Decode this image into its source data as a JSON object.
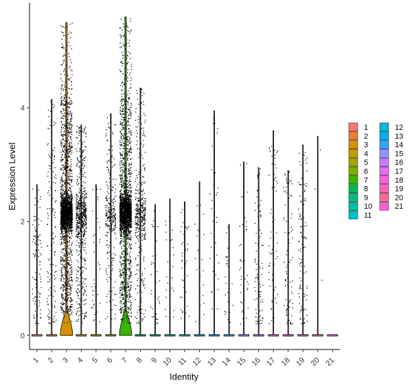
{
  "chart_data": {
    "type": "violin",
    "xlabel": "Identity",
    "ylabel": "Expression Level",
    "ylim": [
      -0.25,
      5.85
    ],
    "yticks": [
      0,
      2,
      4
    ],
    "categories": [
      "1",
      "2",
      "3",
      "4",
      "5",
      "6",
      "7",
      "8",
      "9",
      "10",
      "11",
      "12",
      "13",
      "14",
      "15",
      "16",
      "17",
      "18",
      "19",
      "20",
      "21"
    ],
    "violins": [
      {
        "cluster": "1",
        "max": 2.65,
        "points": 110,
        "color": "#F8766D"
      },
      {
        "cluster": "2",
        "max": 4.15,
        "points": 150,
        "color": "#EA8331"
      },
      {
        "cluster": "3",
        "max": 5.5,
        "points": 2500,
        "color": "#D89000"
      },
      {
        "cluster": "4",
        "max": 3.7,
        "points": 700,
        "color": "#C09B00"
      },
      {
        "cluster": "5",
        "max": 2.65,
        "points": 45,
        "color": "#A3A500"
      },
      {
        "cluster": "6",
        "max": 3.9,
        "points": 300,
        "color": "#7CAE00"
      },
      {
        "cluster": "7",
        "max": 5.6,
        "points": 2500,
        "color": "#39B600"
      },
      {
        "cluster": "8",
        "max": 4.35,
        "points": 420,
        "color": "#00BB4E"
      },
      {
        "cluster": "9",
        "max": 2.3,
        "points": 35,
        "color": "#00BF7D"
      },
      {
        "cluster": "10",
        "max": 2.4,
        "points": 25,
        "color": "#00C1A3"
      },
      {
        "cluster": "11",
        "max": 2.35,
        "points": 45,
        "color": "#00BFC4"
      },
      {
        "cluster": "12",
        "max": 2.7,
        "points": 25,
        "color": "#00BAE0"
      },
      {
        "cluster": "13",
        "max": 3.95,
        "points": 35,
        "color": "#00B0F6"
      },
      {
        "cluster": "14",
        "max": 1.95,
        "points": 25,
        "color": "#35A2FF"
      },
      {
        "cluster": "15",
        "max": 3.05,
        "points": 45,
        "color": "#9590FF"
      },
      {
        "cluster": "16",
        "max": 2.95,
        "points": 85,
        "color": "#C77CFF"
      },
      {
        "cluster": "17",
        "max": 3.6,
        "points": 65,
        "color": "#E76BF3"
      },
      {
        "cluster": "18",
        "max": 2.9,
        "points": 90,
        "color": "#FA62DB"
      },
      {
        "cluster": "19",
        "max": 3.35,
        "points": 110,
        "color": "#FF62BC"
      },
      {
        "cluster": "20",
        "max": 3.5,
        "points": 3,
        "color": "#FF6C91"
      },
      {
        "cluster": "21",
        "max": 0.0,
        "points": 0,
        "color": "#FB61D7"
      }
    ],
    "legend": {
      "position": "right",
      "entries": [
        {
          "label": "1",
          "color": "#F8766D"
        },
        {
          "label": "2",
          "color": "#EA8331"
        },
        {
          "label": "3",
          "color": "#D89000"
        },
        {
          "label": "4",
          "color": "#C09B00"
        },
        {
          "label": "5",
          "color": "#A3A500"
        },
        {
          "label": "6",
          "color": "#7CAE00"
        },
        {
          "label": "7",
          "color": "#39B600"
        },
        {
          "label": "8",
          "color": "#00BB4E"
        },
        {
          "label": "9",
          "color": "#00BF7D"
        },
        {
          "label": "10",
          "color": "#00C1A3"
        },
        {
          "label": "11",
          "color": "#00BFC4"
        },
        {
          "label": "12",
          "color": "#00BAE0"
        },
        {
          "label": "13",
          "color": "#00B0F6"
        },
        {
          "label": "14",
          "color": "#35A2FF"
        },
        {
          "label": "15",
          "color": "#9590FF"
        },
        {
          "label": "16",
          "color": "#C77CFF"
        },
        {
          "label": "17",
          "color": "#E76BF3"
        },
        {
          "label": "18",
          "color": "#FA62DB"
        },
        {
          "label": "19",
          "color": "#FF62BC"
        },
        {
          "label": "20",
          "color": "#FF6C91"
        },
        {
          "label": "21",
          "color": "#FB61D7"
        }
      ]
    },
    "grid": false
  }
}
